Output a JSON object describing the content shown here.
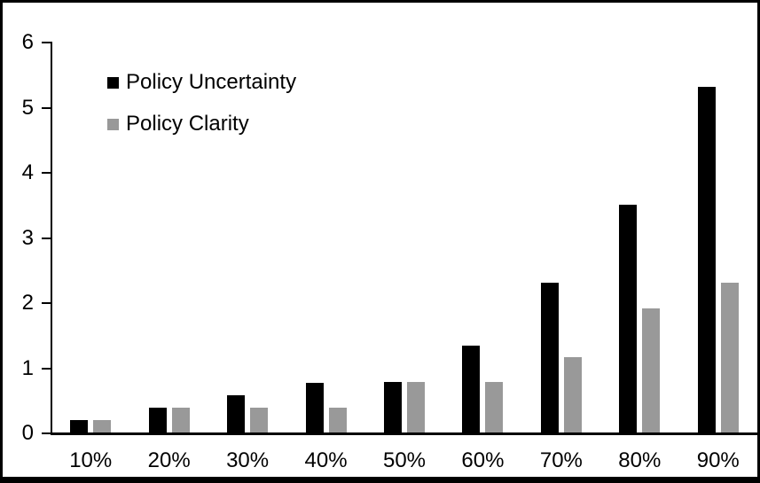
{
  "chart_data": {
    "type": "bar",
    "title": "",
    "xlabel": "",
    "ylabel": "",
    "categories": [
      "10%",
      "20%",
      "30%",
      "40%",
      "50%",
      "60%",
      "70%",
      "80%",
      "90%"
    ],
    "series": [
      {
        "name": "Policy Uncertainty",
        "color": "#000000",
        "values": [
          0.19,
          0.38,
          0.57,
          0.76,
          0.77,
          1.33,
          2.3,
          3.5,
          5.3
        ]
      },
      {
        "name": "Policy Clarity",
        "color": "#999999",
        "values": [
          0.19,
          0.38,
          0.38,
          0.38,
          0.77,
          0.77,
          1.15,
          1.9,
          2.3
        ]
      }
    ],
    "ylim": [
      0,
      6
    ],
    "yticks": [
      0,
      1,
      2,
      3,
      4,
      5,
      6
    ],
    "grid": false,
    "legend_position": "upper-left-inside",
    "background_color": "#ffffff",
    "border_color": "#000000"
  }
}
